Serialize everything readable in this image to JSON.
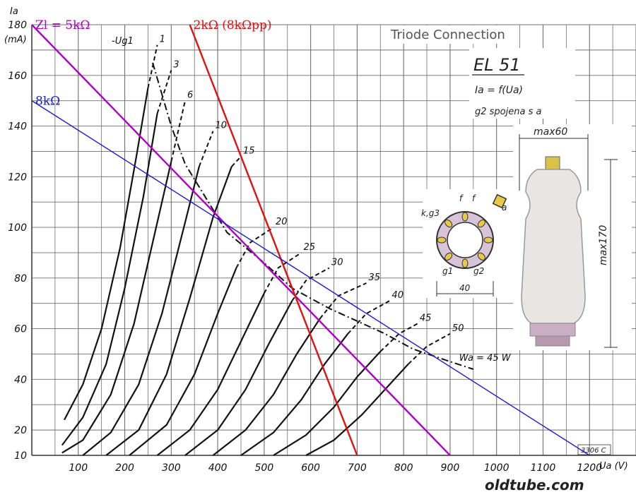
{
  "chart_data": {
    "type": "line",
    "title": "Triode Connection",
    "tube_label": "EL 51",
    "formula": "Ia = f(Ua)",
    "note": "g2 spojena s a",
    "xlabel": "Ua (V)",
    "ylabel_line1": "Ia",
    "ylabel_line2": "(mA)",
    "xlim": [
      0,
      1300
    ],
    "ylim": [
      10,
      180
    ],
    "grid": true,
    "x_ticks": [
      100,
      200,
      300,
      400,
      500,
      600,
      700,
      800,
      900,
      1000,
      1100,
      1200
    ],
    "y_ticks": [
      10,
      20,
      40,
      60,
      80,
      100,
      120,
      140,
      160,
      180
    ],
    "grid_color": "#6f6f6f",
    "curve_color": "#111111",
    "curve_family_label": "-Ug1",
    "curves": [
      {
        "label": "1",
        "points": [
          [
            70,
            24
          ],
          [
            110,
            38
          ],
          [
            150,
            60
          ],
          [
            190,
            92
          ],
          [
            225,
            128
          ],
          [
            250,
            155
          ],
          [
            270,
            172
          ]
        ],
        "dash_from": 5
      },
      {
        "label": "3",
        "points": [
          [
            65,
            14
          ],
          [
            110,
            25
          ],
          [
            160,
            46
          ],
          [
            200,
            76
          ],
          [
            240,
            112
          ],
          [
            270,
            145
          ],
          [
            300,
            162
          ]
        ],
        "dash_from": 5
      },
      {
        "label": "6",
        "points": [
          [
            65,
            11
          ],
          [
            110,
            16
          ],
          [
            170,
            34
          ],
          [
            220,
            62
          ],
          [
            270,
            102
          ],
          [
            300,
            126
          ],
          [
            330,
            150
          ]
        ],
        "dash_from": 5
      },
      {
        "label": "10",
        "points": [
          [
            110,
            10
          ],
          [
            170,
            19
          ],
          [
            230,
            38
          ],
          [
            280,
            66
          ],
          [
            330,
            102
          ],
          [
            360,
            124
          ],
          [
            390,
            138
          ]
        ],
        "dash_from": 5
      },
      {
        "label": "15",
        "points": [
          [
            160,
            10
          ],
          [
            230,
            20
          ],
          [
            290,
            42
          ],
          [
            340,
            72
          ],
          [
            390,
            104
          ],
          [
            430,
            124
          ],
          [
            450,
            128
          ]
        ],
        "dash_from": 5
      },
      {
        "label": "20",
        "points": [
          [
            210,
            10
          ],
          [
            290,
            22
          ],
          [
            350,
            42
          ],
          [
            400,
            66
          ],
          [
            440,
            84
          ],
          [
            470,
            94
          ],
          [
            520,
            100
          ]
        ],
        "dash_from": 4
      },
      {
        "label": "25",
        "points": [
          [
            270,
            10
          ],
          [
            340,
            20
          ],
          [
            400,
            36
          ],
          [
            450,
            55
          ],
          [
            500,
            74
          ],
          [
            530,
            84
          ],
          [
            580,
            90
          ]
        ],
        "dash_from": 4
      },
      {
        "label": "30",
        "points": [
          [
            330,
            10
          ],
          [
            400,
            20
          ],
          [
            460,
            36
          ],
          [
            510,
            54
          ],
          [
            560,
            71
          ],
          [
            590,
            79
          ],
          [
            640,
            84
          ]
        ],
        "dash_from": 4
      },
      {
        "label": "35",
        "points": [
          [
            390,
            10
          ],
          [
            460,
            20
          ],
          [
            520,
            34
          ],
          [
            570,
            50
          ],
          [
            620,
            64
          ],
          [
            660,
            73
          ],
          [
            720,
            78
          ]
        ],
        "dash_from": 4
      },
      {
        "label": "40",
        "points": [
          [
            450,
            10
          ],
          [
            520,
            19
          ],
          [
            580,
            32
          ],
          [
            630,
            46
          ],
          [
            680,
            58
          ],
          [
            720,
            66
          ],
          [
            770,
            71
          ]
        ],
        "dash_from": 4
      },
      {
        "label": "45",
        "points": [
          [
            520,
            10
          ],
          [
            590,
            18
          ],
          [
            650,
            29
          ],
          [
            700,
            41
          ],
          [
            750,
            51
          ],
          [
            790,
            58
          ],
          [
            830,
            62
          ]
        ],
        "dash_from": 4
      },
      {
        "label": "50",
        "points": [
          [
            590,
            10
          ],
          [
            650,
            16
          ],
          [
            710,
            26
          ],
          [
            760,
            36
          ],
          [
            810,
            46
          ],
          [
            850,
            53
          ],
          [
            900,
            58
          ]
        ],
        "dash_from": 4
      }
    ],
    "power_curve_label": "Wa = 45 W",
    "power_curve": [
      [
        260,
        165
      ],
      [
        300,
        140
      ],
      [
        330,
        125
      ],
      [
        380,
        110
      ],
      [
        420,
        98
      ],
      [
        500,
        86
      ],
      [
        560,
        76
      ],
      [
        640,
        68
      ],
      [
        700,
        63
      ],
      [
        760,
        58
      ],
      [
        820,
        52
      ],
      [
        900,
        47
      ],
      [
        950,
        44
      ]
    ],
    "load_lines": [
      {
        "name": "Zl = 5kΩ",
        "color": "#b000c8",
        "points": [
          [
            0,
            180
          ],
          [
            900,
            10
          ]
        ]
      },
      {
        "name": "2kΩ (8kΩpp)",
        "color": "#e01010",
        "points": [
          [
            340,
            180
          ],
          [
            700,
            10
          ]
        ]
      },
      {
        "name": "8kΩ",
        "color": "#1a1ad0",
        "points": [
          [
            0,
            150
          ],
          [
            1200,
            10
          ]
        ]
      }
    ],
    "figure_number": "3306 C",
    "base_diagram": {
      "pin_labels": [
        "f",
        "f",
        "a",
        "k,g3",
        "g1",
        "g2"
      ],
      "dimension": "40"
    },
    "tube_drawing": {
      "width_dim": "max60",
      "height_dim": "max170"
    }
  },
  "watermark": "oldtube.com"
}
